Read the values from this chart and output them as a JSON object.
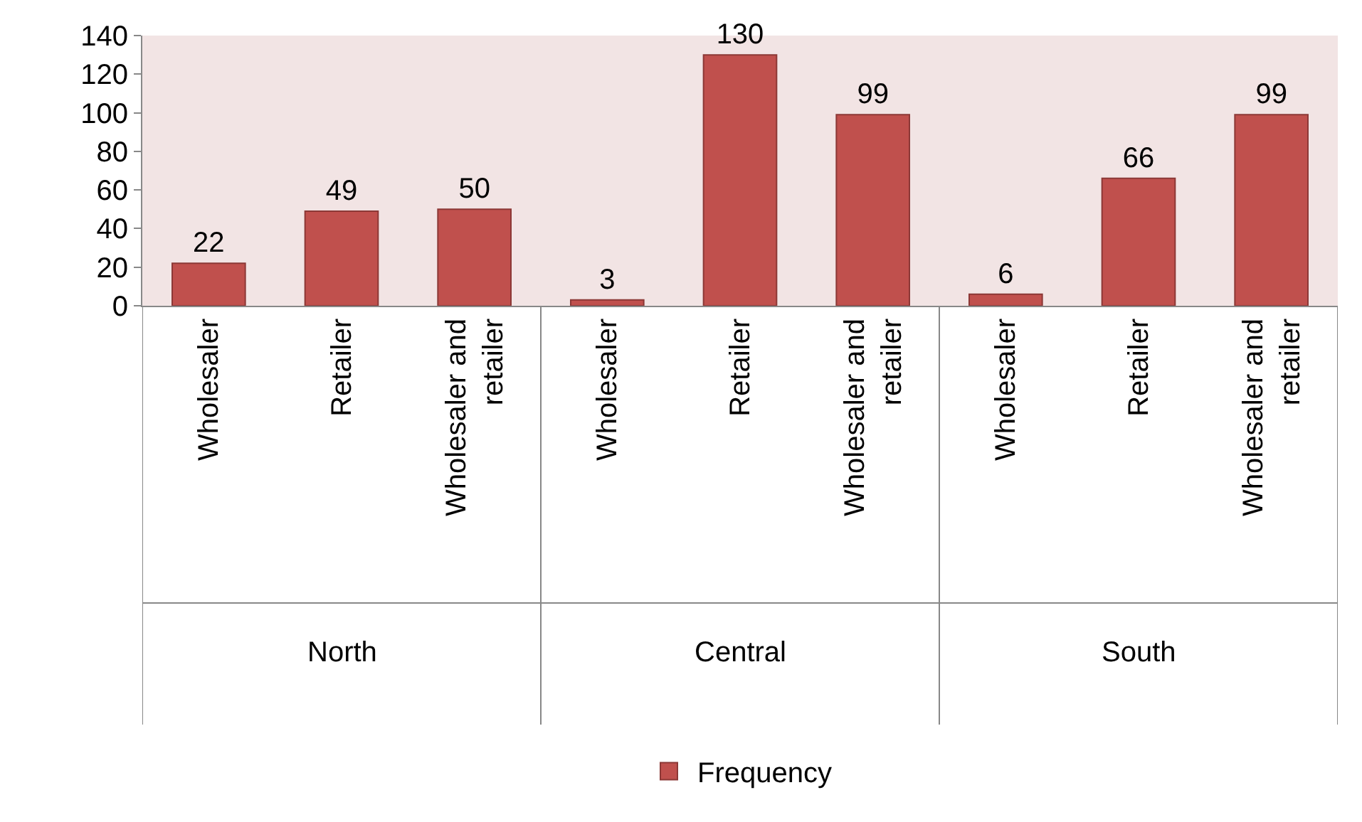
{
  "chart_data": {
    "type": "bar",
    "categories": [
      "Wholesaler",
      "Retailer",
      "Wholesaler and retailer",
      "Wholesaler",
      "Retailer",
      "Wholesaler and retailer",
      "Wholesaler",
      "Retailer",
      "Wholesaler and retailer"
    ],
    "series": [
      {
        "name": "Frequency",
        "color": "#c0504d",
        "values": [
          22,
          49,
          50,
          3,
          130,
          99,
          6,
          66,
          99
        ]
      }
    ],
    "ylim": [
      0,
      140
    ],
    "yticks": [
      0,
      20,
      40,
      60,
      80,
      100,
      120,
      140
    ],
    "annotations": [
      "North",
      "Central",
      "South"
    ],
    "data_labels": true,
    "legend": "bottom",
    "grid": false
  }
}
